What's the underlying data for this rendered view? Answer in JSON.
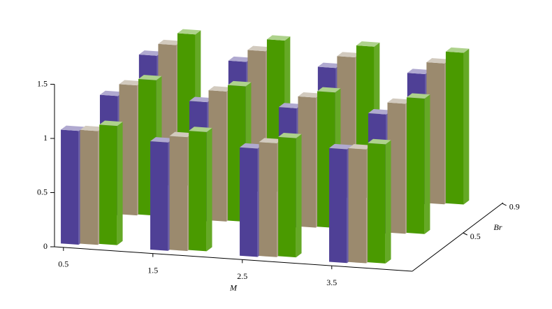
{
  "chart_data": {
    "type": "bar3d",
    "x_label": "M",
    "y_label": "Br",
    "categories": [
      "0.5",
      "1.5",
      "2.5",
      "3.5"
    ],
    "depth_categories": [
      null,
      "0.5",
      "0.9"
    ],
    "zlim": [
      0,
      1.5
    ],
    "zticks": [
      0,
      0.5,
      1,
      1.5
    ],
    "series": [
      {
        "color": "#4f4096",
        "values": [
          [
            1.05,
            1.0,
            1.0,
            1.05
          ],
          [
            1.1,
            1.1,
            1.1,
            1.1
          ],
          [
            1.2,
            1.2,
            1.2,
            1.2
          ]
        ]
      },
      {
        "color": "#9b8a6e",
        "values": [
          [
            1.05,
            1.05,
            1.05,
            1.05
          ],
          [
            1.2,
            1.2,
            1.2,
            1.2
          ],
          [
            1.3,
            1.3,
            1.3,
            1.3
          ]
        ]
      },
      {
        "color": "#4a9a00",
        "values": [
          [
            1.1,
            1.1,
            1.1,
            1.1
          ],
          [
            1.25,
            1.25,
            1.25,
            1.25
          ],
          [
            1.4,
            1.4,
            1.4,
            1.4
          ]
        ]
      }
    ]
  }
}
